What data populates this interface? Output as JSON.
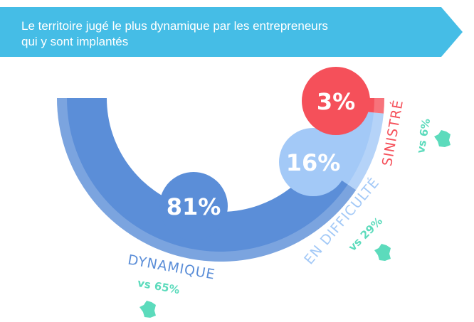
{
  "title_line1": "Le territoire jugé le plus dynamique par les entrepreneurs",
  "title_line2": "qui y sont implantés",
  "colors": {
    "banner": "#45bde6",
    "dynamique": "#5b8ed8",
    "difficulte": "#a3c9f7",
    "sinistre": "#f5505a",
    "comparison": "#5cdbbc"
  },
  "chart_data": {
    "type": "pie",
    "variant": "half-donut",
    "title": "Le territoire jugé le plus dynamique par les entrepreneurs qui y sont implantés",
    "categories": [
      "DYNAMIQUE",
      "EN DIFFICULTÉ",
      "SINISTRÉ"
    ],
    "values": [
      81,
      16,
      3
    ],
    "value_labels": [
      "81%",
      "16%",
      "3%"
    ],
    "comparison_labels": [
      "vs 65%",
      "vs 29%",
      "vs 6%"
    ],
    "comparison_values": [
      65,
      29,
      6
    ],
    "comparison_icon": "france-map-icon"
  }
}
